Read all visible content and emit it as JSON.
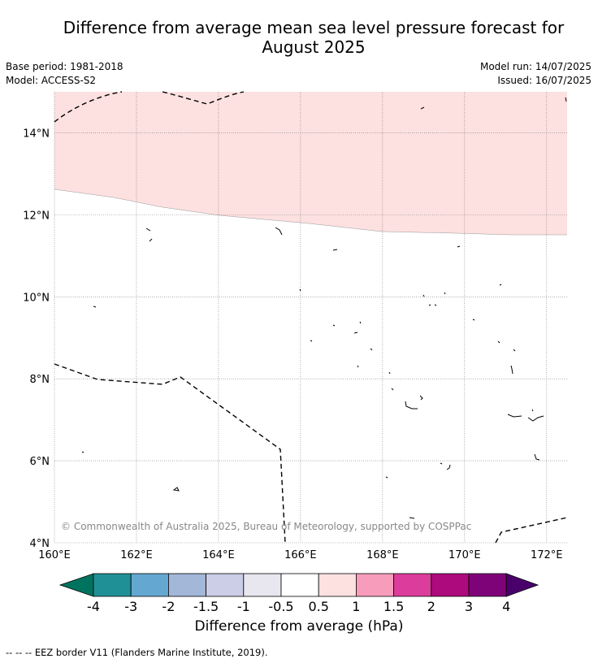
{
  "title_line1": "Difference from average mean sea level pressure forecast for",
  "title_line2": "August 2025",
  "base_period": "Base period: 1981-2018",
  "model": "Model: ACCESS-S2",
  "model_run": "Model run: 14/07/2025",
  "issued": "Issued: 16/07/2025",
  "map": {
    "lat_labels": [
      "14°N",
      "12°N",
      "10°N",
      "8°N",
      "6°N",
      "4°N"
    ],
    "lon_labels": [
      "160°E",
      "162°E",
      "164°E",
      "166°E",
      "168°E",
      "170°E",
      "172°E"
    ],
    "lat_values": [
      14,
      12,
      10,
      8,
      6,
      4
    ],
    "lon_values": [
      160,
      162,
      164,
      166,
      168,
      170,
      172
    ],
    "extent": {
      "lon_min": 160,
      "lon_max": 172.5,
      "lat_min": 4,
      "lat_max": 15
    },
    "copyright": "© Commonwealth of Australia 2025, Bureau of Meteorology, supported by COSPPac",
    "shaded_region": {
      "category": "0.5 to 1",
      "color": "#fde0e0"
    }
  },
  "colorbar": {
    "title": "Difference from average (hPa)",
    "ticks": [
      "-4",
      "-3",
      "-2",
      "-1.5",
      "-1",
      "-0.5",
      "0.5",
      "1",
      "1.5",
      "2",
      "3",
      "4"
    ],
    "colors": [
      "#00735f",
      "#1f9196",
      "#64a8d2",
      "#a3b7d9",
      "#cccde6",
      "#e8e6ee",
      "#ffffff",
      "#fde0e0",
      "#f89cbb",
      "#dc3c9c",
      "#ad0a7e",
      "#7f0378",
      "#4a006a"
    ]
  },
  "footer": "-- -- -- EEZ border V11 (Flanders Marine Institute, 2019)."
}
